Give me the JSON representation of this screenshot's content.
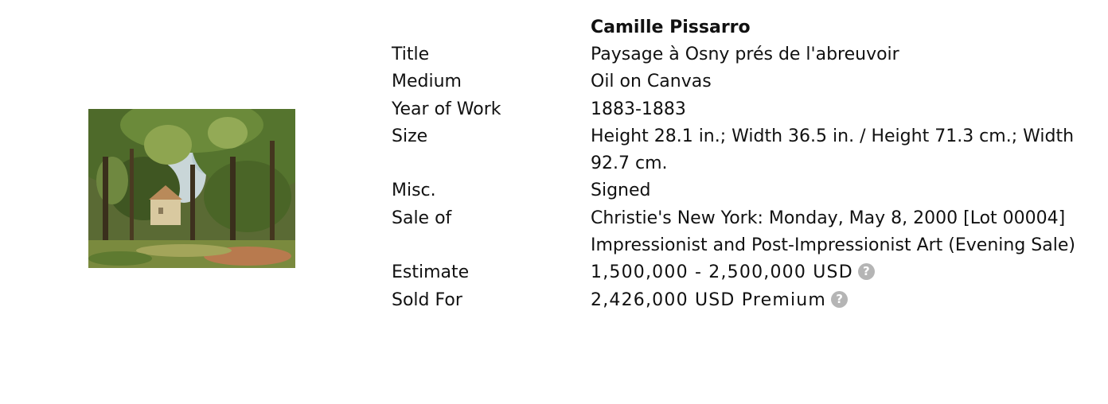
{
  "artist": "Camille Pissarro",
  "artwork_image": {
    "alt": "Paysage à Osny prés de l'abreuvoir"
  },
  "rows": [
    {
      "label": "Title",
      "value": "Paysage à Osny prés de l'abreuvoir"
    },
    {
      "label": "Medium",
      "value": "Oil on Canvas"
    },
    {
      "label": "Year of Work",
      "value": "1883-1883"
    },
    {
      "label": "Size",
      "value": "Height 28.1 in.; Width 36.5 in. / Height 71.3 cm.; Width 92.7 cm."
    },
    {
      "label": "Misc.",
      "value": "Signed"
    },
    {
      "label": "Sale of",
      "value": "Christie's New York: Monday, May 8, 2000 [Lot 00004]",
      "sub": "Impressionist and Post-Impressionist Art (Evening Sale)"
    },
    {
      "label": "Estimate",
      "value": "1,500,000 - 2,500,000 USD"
    },
    {
      "label": "Sold For",
      "value": "2,426,000 USD Premium"
    }
  ],
  "help_icon": {
    "glyph": "?",
    "icon": "question-circle-icon",
    "color": "#b5b5b5"
  }
}
